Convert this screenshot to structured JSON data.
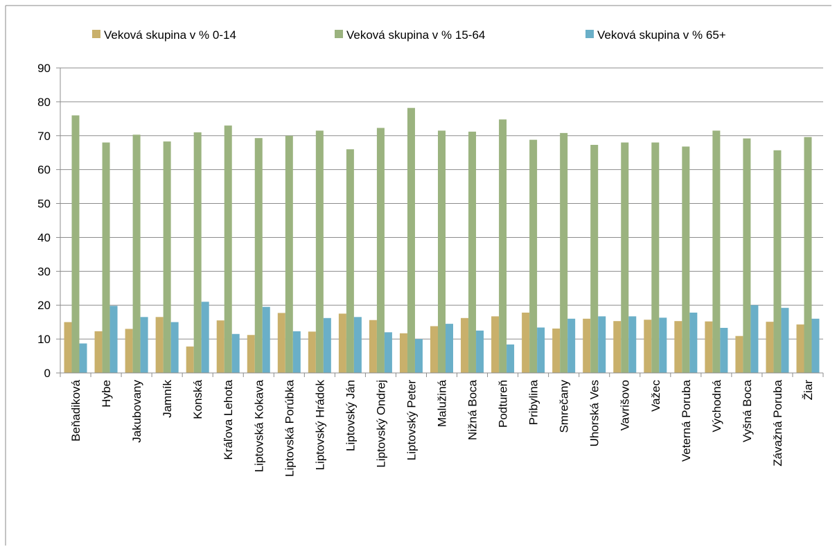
{
  "chart_data": {
    "type": "bar",
    "categories": [
      "Beňadiková",
      "Hybe",
      "Jakubovany",
      "Jamník",
      "Konská",
      "Kráľova Lehota",
      "Liptovská Kokava",
      "Liptovská Porúbka",
      "Liptovský Hrádok",
      "Liptovský Ján",
      "Liptovský Ondrej",
      "Liptovský Peter",
      "Malužiná",
      "Nižná Boca",
      "Podtureň",
      "Pribylina",
      "Smrečany",
      "Uhorská Ves",
      "Vavrišovo",
      "Važec",
      "Veterná Poruba",
      "Východná",
      "Vyšná Boca",
      "Závažná Poruba",
      "Žiar"
    ],
    "series": [
      {
        "name": "Veková skupina v % 0-14",
        "color": "#c9b06b",
        "values": [
          15,
          12.3,
          13,
          16.5,
          7.8,
          15.5,
          11.2,
          17.7,
          12.2,
          17.5,
          15.6,
          11.7,
          13.8,
          16.2,
          16.7,
          17.8,
          13.1,
          16,
          15.3,
          15.7,
          15.3,
          15.2,
          10.9,
          15.1,
          14.3
        ]
      },
      {
        "name": "Veková skupina v % 15-64",
        "color": "#9bb37f",
        "values": [
          76,
          68,
          70.3,
          68.3,
          71,
          73,
          69.3,
          70,
          71.5,
          66,
          72.3,
          78.2,
          71.5,
          71.2,
          74.8,
          68.8,
          70.8,
          67.3,
          68,
          68,
          66.8,
          71.5,
          69.2,
          65.7,
          69.6
        ]
      },
      {
        "name": "Veková skupina v % 65+",
        "color": "#6aafc8",
        "values": [
          8.7,
          19.8,
          16.5,
          15,
          21,
          11.5,
          19.5,
          12.3,
          16.2,
          16.5,
          12,
          10,
          14.5,
          12.5,
          8.4,
          13.4,
          16,
          16.7,
          16.7,
          16.3,
          17.8,
          13.3,
          20,
          19.2,
          16
        ]
      }
    ],
    "ylim": [
      0,
      90
    ],
    "yticks": [
      0,
      10,
      20,
      30,
      40,
      50,
      60,
      70,
      80,
      90
    ],
    "grid": true,
    "legend": "top"
  }
}
